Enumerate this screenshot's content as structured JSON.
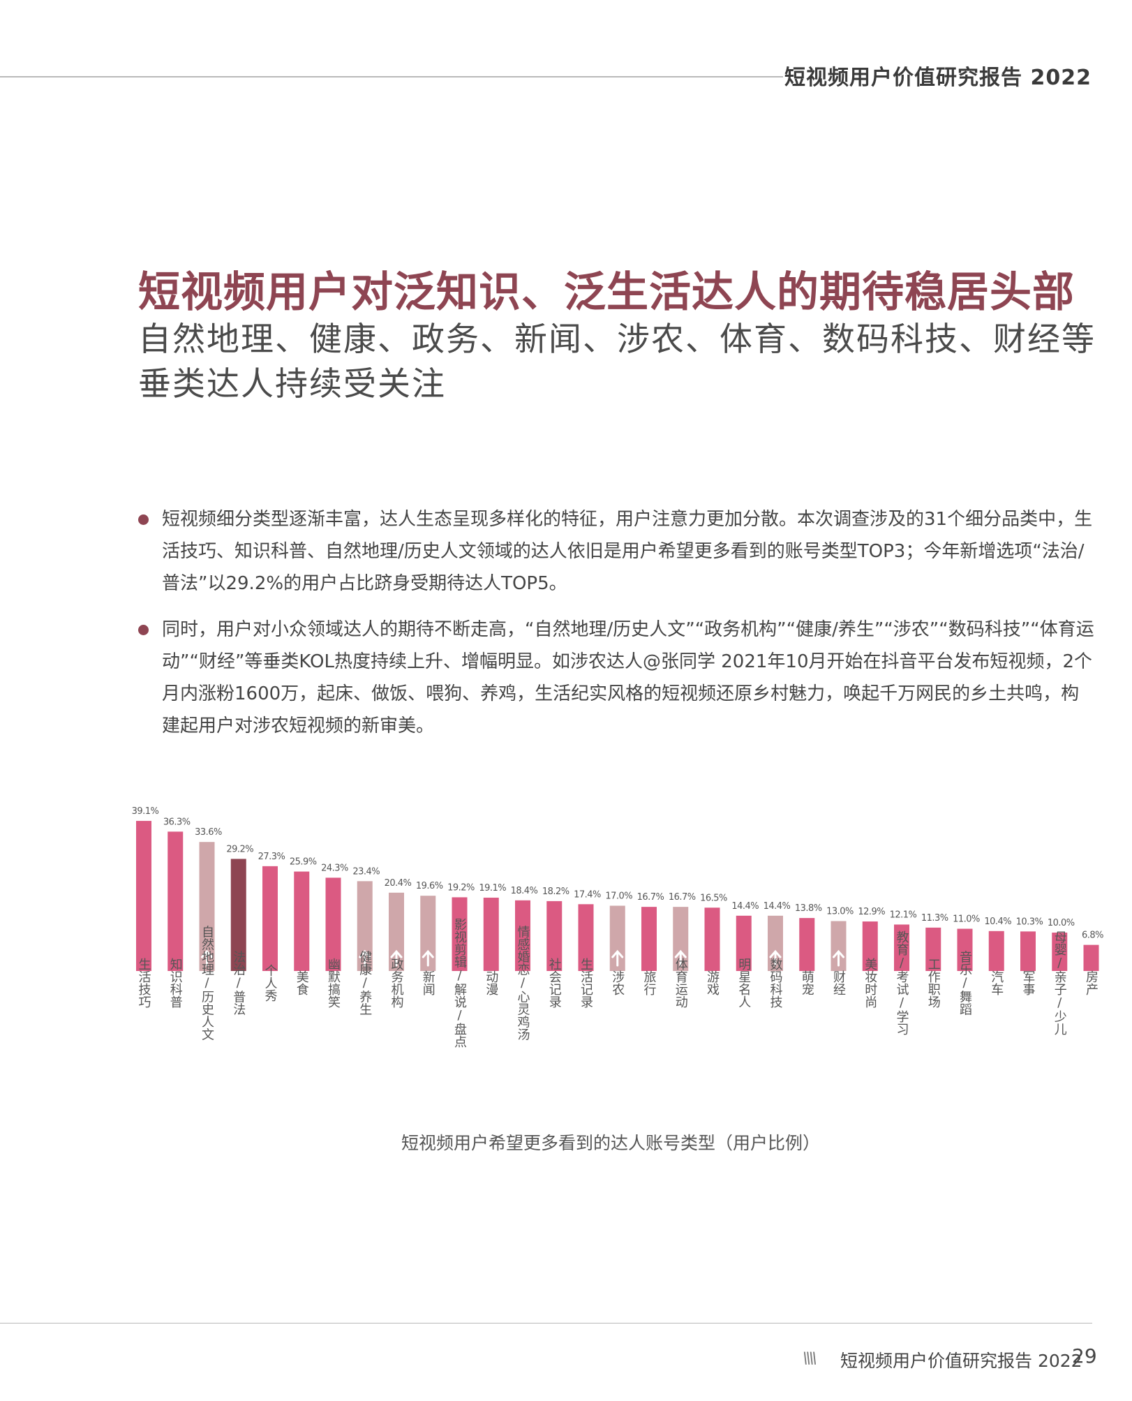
{
  "header": {
    "title": "短视频用户价值研究报告 2022"
  },
  "heading": {
    "title": "短视频用户对泛知识、泛生活达人的期待稳居头部",
    "subtitle": "自然地理、健康、政务、新闻、涉农、体育、数码科技、财经等垂类达人持续受关注"
  },
  "bullets": [
    "短视频细分类型逐渐丰富，达人生态呈现多样化的特征，用户注意力更加分散。本次调查涉及的31个细分品类中，生活技巧、知识科普、自然地理/历史人文领域的达人依旧是用户希望更多看到的账号类型TOP3；今年新增选项“法治/普法”以29.2%的用户占比跻身受期待达人TOP5。",
    "同时，用户对小众领域达人的期待不断走高，“自然地理/历史人文”“政务机构”“健康/养生”“涉农”“数码科技”“体育运动”“财经”等垂类KOL热度持续上升、增幅明显。如涉农达人@张同学 2021年10月开始在抖音平台发布短视频，2个月内涨粉1600万，起床、做饭、喂狗、养鸡，生活纪实风格的短视频还原乡村魅力，唤起千万网民的乡土共鸣，构建起用户对涉农短视频的新审美。"
  ],
  "chart_data": {
    "type": "bar",
    "title": "短视频用户希望更多看到的达人账号类型（用户比例）",
    "categories": [
      "生活技巧",
      "知识科普",
      "自然地理/历史人文",
      "法治/普法",
      "个人秀",
      "美食",
      "幽默搞笑",
      "健康/养生",
      "政务机构",
      "新闻",
      "影视剪辑/解说/盘点",
      "动漫",
      "情感婚恋/心灵鸡汤",
      "社会记录",
      "生活记录",
      "涉农",
      "旅行",
      "体育运动",
      "游戏",
      "明星名人",
      "数码科技",
      "萌宠",
      "财经",
      "美妆时尚",
      "教育/考试/学习",
      "工作职场",
      "音乐/舞蹈",
      "汽车",
      "军事",
      "母婴/亲子/少儿",
      "房产"
    ],
    "values": [
      39.1,
      36.3,
      33.6,
      29.2,
      27.3,
      25.9,
      24.3,
      23.4,
      20.4,
      19.6,
      19.2,
      19.1,
      18.4,
      18.2,
      17.4,
      17.0,
      16.7,
      16.7,
      16.5,
      14.4,
      14.4,
      13.8,
      13.0,
      12.9,
      12.1,
      11.3,
      11.0,
      10.4,
      10.3,
      10.0,
      6.8
    ],
    "value_labels": [
      "39.1%",
      "36.3%",
      "33.6%",
      "29.2%",
      "27.3%",
      "25.9%",
      "24.3%",
      "23.4%",
      "20.4%",
      "19.6%",
      "19.2%",
      "19.1%",
      "18.4%",
      "18.2%",
      "17.4%",
      "17.0%",
      "16.7%",
      "16.7%",
      "16.5%",
      "14.4%",
      "14.4%",
      "13.8%",
      "13.0%",
      "12.9%",
      "12.1%",
      "11.3%",
      "11.0%",
      "10.4%",
      "10.3%",
      "10.0%",
      "6.8%"
    ],
    "highlight": [
      "normal",
      "normal",
      "rising",
      "new",
      "normal",
      "normal",
      "normal",
      "rising",
      "rising",
      "rising",
      "normal",
      "normal",
      "normal",
      "normal",
      "normal",
      "rising",
      "normal",
      "rising",
      "normal",
      "normal",
      "rising",
      "normal",
      "rising",
      "normal",
      "normal",
      "normal",
      "normal",
      "normal",
      "normal",
      "normal",
      "normal"
    ],
    "colors": {
      "normal": "#db5a82",
      "rising": "#cfa7aa",
      "new": "#8e4552"
    },
    "ylim": [
      0,
      40
    ]
  },
  "footer": {
    "slashes": "\\\\\\\\",
    "title": "短视频用户价值研究报告 2022",
    "page": "29"
  }
}
